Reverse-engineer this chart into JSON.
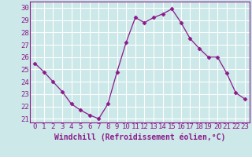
{
  "x": [
    0,
    1,
    2,
    3,
    4,
    5,
    6,
    7,
    8,
    9,
    10,
    11,
    12,
    13,
    14,
    15,
    16,
    17,
    18,
    19,
    20,
    21,
    22,
    23
  ],
  "y": [
    25.5,
    24.8,
    24.0,
    23.2,
    22.2,
    21.7,
    21.3,
    21.0,
    22.2,
    24.8,
    27.2,
    29.2,
    28.8,
    29.2,
    29.5,
    29.9,
    28.8,
    27.5,
    26.7,
    26.0,
    26.0,
    24.7,
    23.1,
    22.6
  ],
  "line_color": "#8b1a8b",
  "marker": "D",
  "marker_size": 2.5,
  "bg_color": "#cce8e8",
  "grid_color": "#ffffff",
  "xlabel": "Windchill (Refroidissement éolien,°C)",
  "yticks": [
    21,
    22,
    23,
    24,
    25,
    26,
    27,
    28,
    29,
    30
  ],
  "xticks": [
    0,
    1,
    2,
    3,
    4,
    5,
    6,
    7,
    8,
    9,
    10,
    11,
    12,
    13,
    14,
    15,
    16,
    17,
    18,
    19,
    20,
    21,
    22,
    23
  ],
  "ylim": [
    20.7,
    30.5
  ],
  "xlim": [
    -0.5,
    23.5
  ],
  "xlabel_fontsize": 7,
  "tick_fontsize": 6.5,
  "tick_color": "#8b1a8b",
  "label_color": "#8b1a8b",
  "axis_color": "#8b1a8b"
}
